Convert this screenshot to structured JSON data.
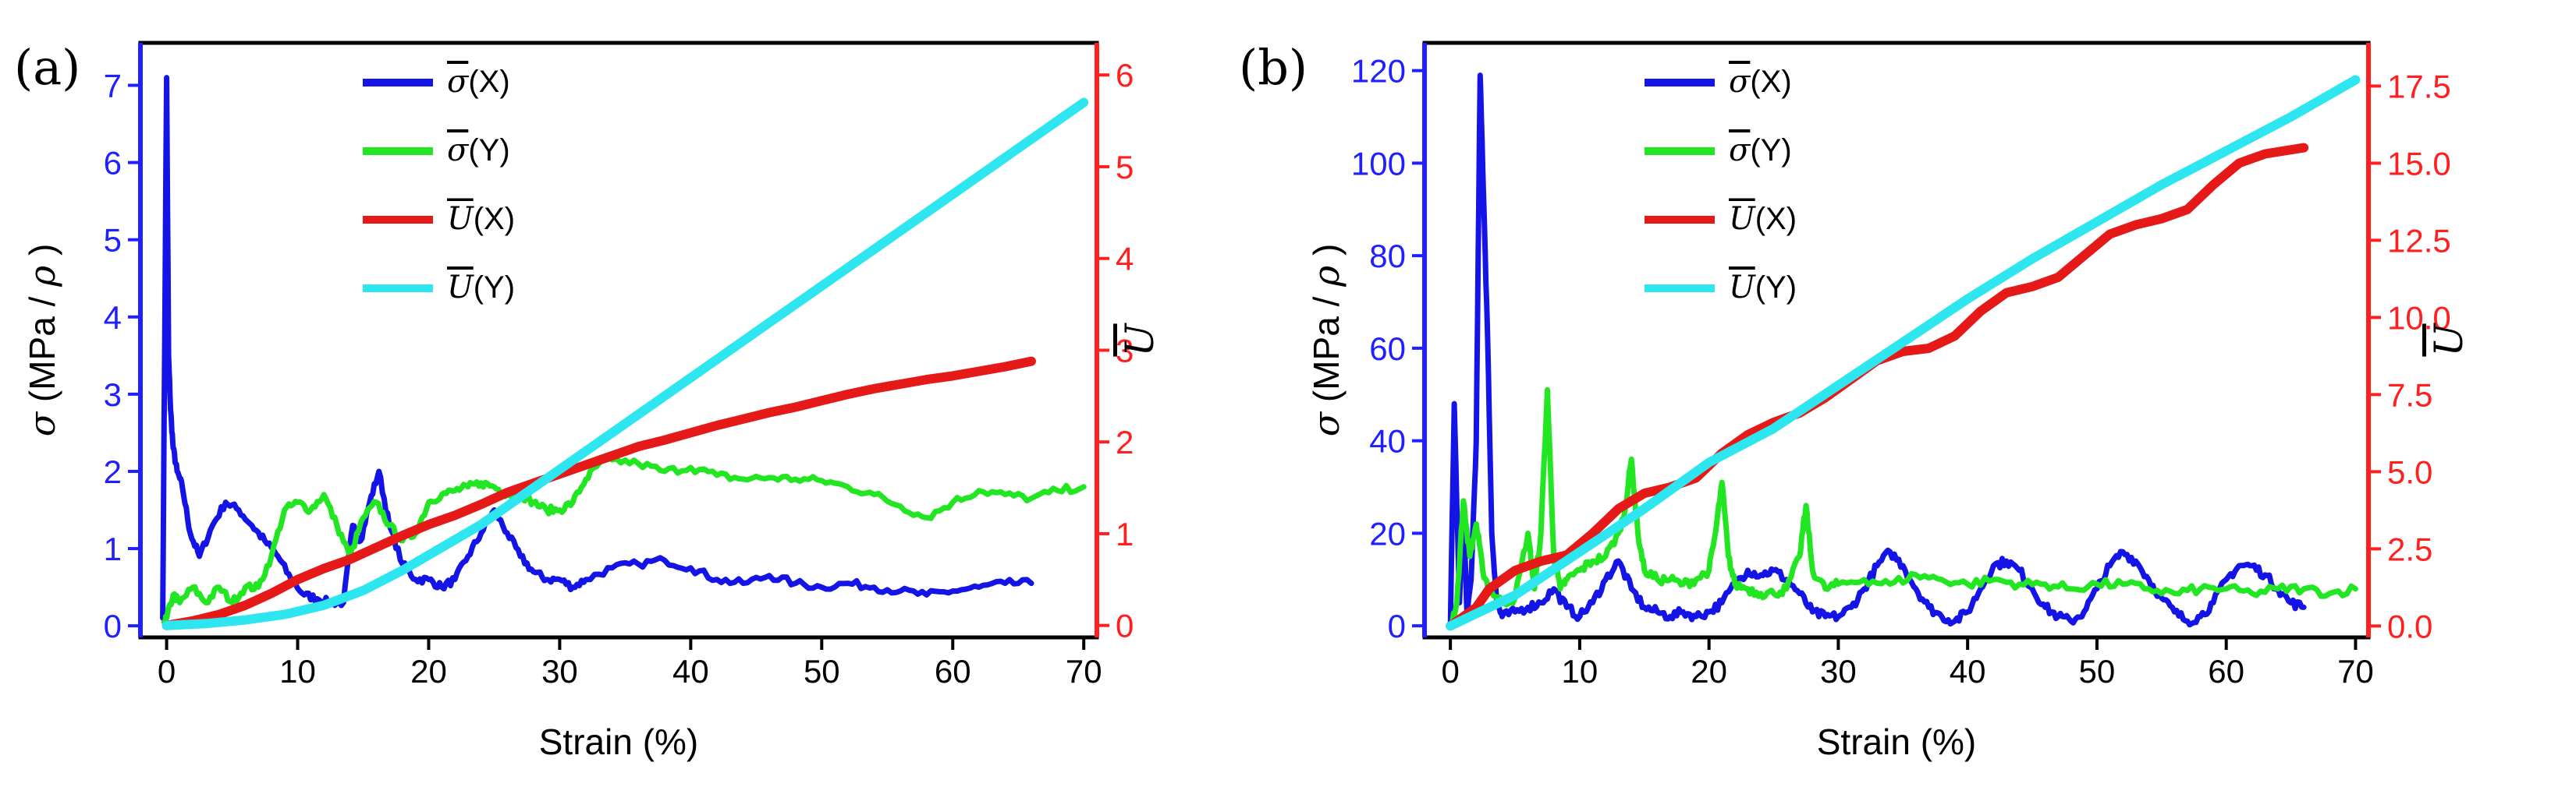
{
  "colors": {
    "sigma_x": "#1414e6",
    "sigma_y": "#22e622",
    "u_x": "#e61919",
    "u_y": "#2ee6f0",
    "left_axis": "#1f1fff",
    "right_axis": "#ff1f1f"
  },
  "chart_data": [
    {
      "panel_label": "(a)",
      "type": "line",
      "xlabel": "Strain (%)",
      "ylabel": {
        "sym": "σ",
        "suffix": " (MPa / ",
        "sym2": "ρ",
        "close": ")"
      },
      "y2label": "U",
      "xlim": [
        -2,
        71
      ],
      "ylim": [
        -0.15,
        7.55
      ],
      "y2lim": [
        -0.13,
        6.35
      ],
      "xticks": [
        0,
        10,
        20,
        30,
        40,
        50,
        60,
        70
      ],
      "yticks": [
        0,
        1,
        2,
        3,
        4,
        5,
        6,
        7
      ],
      "y2ticks": [
        0,
        1,
        2,
        3,
        4,
        5,
        6
      ],
      "legend": [
        {
          "sym": "σ",
          "label": "(X)",
          "key": "sigma_x"
        },
        {
          "sym": "σ",
          "label": "(Y)",
          "key": "sigma_y"
        },
        {
          "sym": "U",
          "label": "(X)",
          "key": "u_x"
        },
        {
          "sym": "U",
          "label": "(Y)",
          "key": "u_y"
        }
      ],
      "series": [
        {
          "key": "sigma_x",
          "axis": "left",
          "noise": 0.05,
          "x": [
            -0.3,
            0,
            0.15,
            0.3,
            0.5,
            0.8,
            1.2,
            1.8,
            2.5,
            3.5,
            4.5,
            5.5,
            6.5,
            7.5,
            8.5,
            9.5,
            10.5,
            11.5,
            12.5,
            13.5,
            14.2,
            14.8,
            15.5,
            16.2,
            17,
            18,
            19,
            20,
            21,
            22,
            23,
            24,
            25,
            26,
            27,
            28,
            29,
            30,
            31,
            32,
            34,
            36,
            38,
            40,
            42,
            44,
            46,
            48,
            50,
            52,
            54,
            56,
            58,
            60,
            62,
            64,
            66
          ],
          "y": [
            0.1,
            7.1,
            3.5,
            2.8,
            2.3,
            2.0,
            1.8,
            1.2,
            0.9,
            1.3,
            1.6,
            1.5,
            1.3,
            1.1,
            0.9,
            0.6,
            0.4,
            0.35,
            0.3,
            0.3,
            1.3,
            1.1,
            1.6,
            2.0,
            1.3,
            0.8,
            0.6,
            0.6,
            0.5,
            0.6,
            0.9,
            1.2,
            1.5,
            1.2,
            0.9,
            0.7,
            0.6,
            0.6,
            0.5,
            0.6,
            0.75,
            0.8,
            0.85,
            0.75,
            0.6,
            0.55,
            0.65,
            0.55,
            0.5,
            0.55,
            0.5,
            0.45,
            0.4,
            0.45,
            0.5,
            0.55,
            0.55
          ]
        },
        {
          "key": "sigma_y",
          "axis": "left",
          "noise": 0.05,
          "x": [
            -0.2,
            0,
            0.5,
            1,
            2,
            3,
            4,
            5,
            6,
            7,
            8,
            9,
            10,
            11,
            12,
            13,
            14,
            15,
            16,
            17,
            18,
            19,
            20,
            21,
            22,
            23,
            24,
            25,
            26,
            27,
            28,
            29,
            30,
            31,
            32,
            33,
            34,
            36,
            38,
            40,
            42,
            44,
            46,
            48,
            50,
            52,
            54,
            56,
            58,
            60,
            62,
            64,
            66,
            68,
            70
          ],
          "y": [
            0.05,
            0.1,
            0.4,
            0.3,
            0.5,
            0.3,
            0.5,
            0.3,
            0.5,
            0.5,
            0.9,
            1.5,
            1.6,
            1.5,
            1.7,
            1.3,
            0.9,
            1.4,
            1.6,
            1.3,
            1.1,
            1.2,
            1.6,
            1.7,
            1.75,
            1.8,
            1.85,
            1.8,
            1.7,
            1.7,
            1.6,
            1.5,
            1.5,
            1.6,
            1.9,
            2.1,
            2.15,
            2.1,
            2.0,
            2.05,
            1.95,
            1.9,
            1.92,
            1.9,
            1.88,
            1.8,
            1.7,
            1.55,
            1.4,
            1.6,
            1.75,
            1.7,
            1.65,
            1.75,
            1.8
          ]
        },
        {
          "key": "u_x",
          "axis": "right",
          "noise": 0,
          "x": [
            0,
            2,
            4,
            6,
            8,
            10,
            12,
            14,
            16,
            18,
            20,
            22,
            24,
            26,
            28,
            30,
            32,
            34,
            36,
            38,
            40,
            42,
            44,
            46,
            48,
            50,
            52,
            54,
            56,
            58,
            60,
            62,
            64,
            66
          ],
          "y": [
            0,
            0.05,
            0.12,
            0.22,
            0.35,
            0.5,
            0.62,
            0.72,
            0.85,
            0.98,
            1.1,
            1.2,
            1.32,
            1.45,
            1.55,
            1.65,
            1.75,
            1.85,
            1.95,
            2.02,
            2.1,
            2.18,
            2.25,
            2.32,
            2.38,
            2.45,
            2.52,
            2.58,
            2.63,
            2.68,
            2.72,
            2.77,
            2.82,
            2.88
          ]
        },
        {
          "key": "u_y",
          "axis": "right",
          "noise": 0,
          "x": [
            0,
            3,
            6,
            9,
            12,
            15,
            18,
            21,
            24,
            27,
            30,
            33,
            36,
            40,
            45,
            50,
            55,
            60,
            65,
            70
          ],
          "y": [
            0,
            0.02,
            0.06,
            0.12,
            0.22,
            0.38,
            0.6,
            0.85,
            1.1,
            1.4,
            1.7,
            2.0,
            2.3,
            2.7,
            3.2,
            3.7,
            4.2,
            4.7,
            5.2,
            5.7
          ]
        }
      ]
    },
    {
      "panel_label": "(b)",
      "type": "line",
      "xlabel": "Strain (%)",
      "ylabel": {
        "sym": "σ",
        "suffix": " (MPa / ",
        "sym2": "ρ",
        "close": ")"
      },
      "y2label": "U",
      "xlim": [
        -2,
        71
      ],
      "ylim": [
        -2.5,
        126
      ],
      "y2lim": [
        -0.37,
        18.9
      ],
      "xticks": [
        0,
        10,
        20,
        30,
        40,
        50,
        60,
        70
      ],
      "yticks": [
        0,
        20,
        40,
        60,
        80,
        100,
        120
      ],
      "y2ticks": [
        "0.0",
        "2.5",
        "5.0",
        "7.5",
        "10.0",
        "12.5",
        "15.0",
        "17.5"
      ],
      "legend": [
        {
          "sym": "σ",
          "label": "(X)",
          "key": "sigma_x"
        },
        {
          "sym": "σ",
          "label": "(Y)",
          "key": "sigma_y"
        },
        {
          "sym": "U",
          "label": "(X)",
          "key": "u_x"
        },
        {
          "sym": "U",
          "label": "(Y)",
          "key": "u_y"
        }
      ],
      "series": [
        {
          "key": "sigma_x",
          "axis": "left",
          "noise": 1.0,
          "x": [
            0,
            0.3,
            0.7,
            1.0,
            1.3,
            1.6,
            2.0,
            2.3,
            2.6,
            2.9,
            3.2,
            3.6,
            4,
            5,
            6,
            7,
            8,
            9,
            10,
            11,
            12,
            13,
            14,
            15,
            16,
            17,
            18,
            19,
            20,
            21,
            22,
            23,
            24,
            25,
            26,
            27,
            28,
            29,
            30,
            31,
            32,
            33,
            34,
            35,
            36,
            37,
            38,
            39,
            40,
            41,
            42,
            43,
            44,
            45,
            46,
            47,
            48,
            49,
            50,
            51,
            52,
            53,
            54,
            55,
            56,
            57,
            58,
            59,
            60,
            61,
            62,
            63,
            64,
            65,
            66
          ],
          "y": [
            0,
            48,
            5,
            25,
            2,
            10,
            40,
            119,
            90,
            60,
            20,
            5,
            2,
            3,
            4,
            5,
            8,
            4,
            2,
            5,
            10,
            14,
            8,
            4,
            3,
            2,
            3,
            2,
            3,
            5,
            9,
            12,
            11,
            12,
            10,
            7,
            3,
            2,
            2,
            4,
            8,
            13,
            16,
            13,
            8,
            4,
            2,
            1,
            3,
            8,
            13,
            14,
            12,
            8,
            4,
            2,
            1,
            3,
            8,
            13,
            16,
            14,
            10,
            6,
            3,
            1,
            2,
            5,
            10,
            13,
            13,
            11,
            8,
            5,
            4
          ]
        },
        {
          "key": "sigma_y",
          "axis": "left",
          "noise": 1.0,
          "x": [
            0,
            0.5,
            1.0,
            1.5,
            2.0,
            2.5,
            3,
            4,
            5,
            6,
            6.5,
            7,
            7.5,
            8,
            8.5,
            9,
            10,
            11,
            12,
            13,
            13.5,
            14,
            14.5,
            15,
            16,
            17,
            18,
            19,
            20,
            20.5,
            21,
            21.5,
            22,
            23,
            24,
            25,
            26,
            27,
            27.5,
            28,
            29,
            30,
            32,
            34,
            36,
            38,
            40,
            42,
            44,
            46,
            48,
            50,
            52,
            54,
            56,
            58,
            60,
            62,
            64,
            66,
            68,
            70
          ],
          "y": [
            0,
            5,
            27,
            15,
            22,
            12,
            8,
            5,
            6,
            20,
            8,
            20,
            51,
            15,
            8,
            10,
            12,
            14,
            15,
            20,
            25,
            36,
            20,
            12,
            10,
            10,
            9,
            10,
            12,
            20,
            31,
            15,
            9,
            8,
            7,
            7,
            8,
            15,
            26,
            12,
            8,
            9,
            10,
            9,
            11,
            10,
            9,
            10,
            9,
            9,
            8,
            9,
            9,
            8,
            7,
            8,
            8,
            7,
            8,
            8,
            7,
            8
          ]
        },
        {
          "key": "u_x",
          "axis": "right",
          "noise": 0,
          "x": [
            0,
            2,
            3,
            5,
            7,
            9,
            11,
            13,
            15,
            17,
            19,
            21,
            23,
            25,
            27,
            29,
            31,
            33,
            35,
            37,
            39,
            41,
            43,
            45,
            47,
            49,
            51,
            53,
            55,
            57,
            59,
            61,
            63,
            66
          ],
          "y": [
            0,
            0.6,
            1.2,
            1.8,
            2.1,
            2.3,
            3.0,
            3.8,
            4.3,
            4.5,
            4.8,
            5.6,
            6.2,
            6.6,
            6.9,
            7.4,
            8.0,
            8.6,
            8.9,
            9.0,
            9.4,
            10.2,
            10.8,
            11.0,
            11.3,
            12.0,
            12.7,
            13.0,
            13.2,
            13.5,
            14.3,
            15.0,
            15.3,
            15.5
          ]
        },
        {
          "key": "u_y",
          "axis": "right",
          "noise": 0,
          "x": [
            0,
            5,
            10,
            15,
            20,
            25,
            30,
            35,
            40,
            45,
            50,
            55,
            60,
            65,
            70
          ],
          "y": [
            0,
            1.0,
            2.4,
            3.8,
            5.3,
            6.4,
            7.8,
            9.2,
            10.6,
            11.9,
            13.1,
            14.3,
            15.4,
            16.5,
            17.7
          ]
        }
      ]
    }
  ]
}
